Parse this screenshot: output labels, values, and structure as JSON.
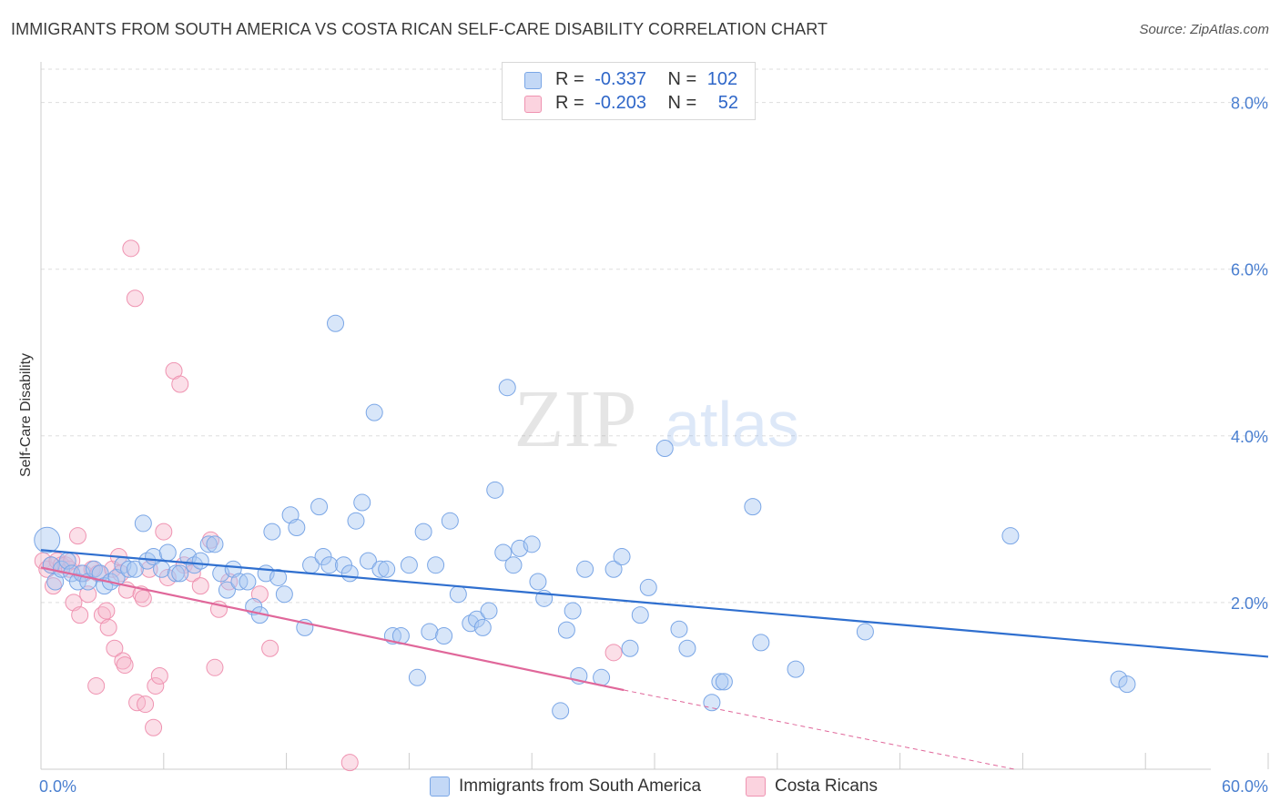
{
  "header": {
    "title": "IMMIGRANTS FROM SOUTH AMERICA VS COSTA RICAN SELF-CARE DISABILITY CORRELATION CHART",
    "source": "Source: ZipAtlas.com"
  },
  "watermark": {
    "zip": "ZIP",
    "atlas": "atlas"
  },
  "legend": {
    "rows": [
      {
        "r_label": "R =",
        "r_value": "-0.337",
        "n_label": "N =",
        "n_value": "102",
        "color": "#a9c7f2"
      },
      {
        "r_label": "R =",
        "r_value": "-0.203",
        "n_label": "N =",
        "n_value": "52",
        "color": "#f6b9cc"
      }
    ]
  },
  "colors": {
    "blue_fill": "#a9c7f2",
    "blue_stroke": "#7aa6e6",
    "blue_line": "#2f6fcf",
    "pink_fill": "#f6b9cc",
    "pink_stroke": "#ef93b1",
    "pink_line": "#e0679a",
    "tick_text": "#4a7fd0",
    "grid": "#dddddd"
  },
  "chart_data": {
    "type": "scatter",
    "title": "IMMIGRANTS FROM SOUTH AMERICA VS COSTA RICAN SELF-CARE DISABILITY CORRELATION CHART",
    "xlabel": "",
    "ylabel": "Self-Care Disability",
    "xlim": [
      0,
      60
    ],
    "ylim": [
      0,
      8.4
    ],
    "x_tick_labels": [
      "0.0%",
      "60.0%"
    ],
    "y_ticks": [
      2,
      4,
      6,
      8
    ],
    "y_tick_labels": [
      "2.0%",
      "4.0%",
      "6.0%",
      "8.0%"
    ],
    "grid": true,
    "series": [
      {
        "name": "Immigrants from South America",
        "r": -0.337,
        "n": 102,
        "trend": {
          "x0": 0,
          "y0": 2.63,
          "x1": 60,
          "y1": 1.35
        },
        "points": [
          [
            0.3,
            2.75
          ],
          [
            0.5,
            2.45
          ],
          [
            0.7,
            2.25
          ],
          [
            1.0,
            2.4
          ],
          [
            1.3,
            2.5
          ],
          [
            1.5,
            2.35
          ],
          [
            1.8,
            2.25
          ],
          [
            2.0,
            2.35
          ],
          [
            2.3,
            2.25
          ],
          [
            2.6,
            2.4
          ],
          [
            2.9,
            2.35
          ],
          [
            3.1,
            2.2
          ],
          [
            3.4,
            2.25
          ],
          [
            3.7,
            2.3
          ],
          [
            4.0,
            2.45
          ],
          [
            4.3,
            2.4
          ],
          [
            4.6,
            2.4
          ],
          [
            5.0,
            2.95
          ],
          [
            5.2,
            2.5
          ],
          [
            5.5,
            2.55
          ],
          [
            5.9,
            2.4
          ],
          [
            6.2,
            2.6
          ],
          [
            6.6,
            2.35
          ],
          [
            6.8,
            2.35
          ],
          [
            7.2,
            2.55
          ],
          [
            7.5,
            2.45
          ],
          [
            7.8,
            2.5
          ],
          [
            8.2,
            2.7
          ],
          [
            8.5,
            2.7
          ],
          [
            8.8,
            2.35
          ],
          [
            9.1,
            2.15
          ],
          [
            9.4,
            2.4
          ],
          [
            9.7,
            2.25
          ],
          [
            10.1,
            2.25
          ],
          [
            10.4,
            1.95
          ],
          [
            10.7,
            1.85
          ],
          [
            11.0,
            2.35
          ],
          [
            11.3,
            2.85
          ],
          [
            11.6,
            2.3
          ],
          [
            11.9,
            2.1
          ],
          [
            12.2,
            3.05
          ],
          [
            12.5,
            2.9
          ],
          [
            12.9,
            1.7
          ],
          [
            13.2,
            2.45
          ],
          [
            13.6,
            3.15
          ],
          [
            13.8,
            2.55
          ],
          [
            14.1,
            2.45
          ],
          [
            14.4,
            5.35
          ],
          [
            14.8,
            2.45
          ],
          [
            15.1,
            2.35
          ],
          [
            15.4,
            2.98
          ],
          [
            15.7,
            3.2
          ],
          [
            16.0,
            2.5
          ],
          [
            16.3,
            4.28
          ],
          [
            16.6,
            2.4
          ],
          [
            16.9,
            2.4
          ],
          [
            17.2,
            1.6
          ],
          [
            17.6,
            1.6
          ],
          [
            18.0,
            2.45
          ],
          [
            18.4,
            1.1
          ],
          [
            18.7,
            2.85
          ],
          [
            19.0,
            1.65
          ],
          [
            19.3,
            2.45
          ],
          [
            19.7,
            1.6
          ],
          [
            20.0,
            2.98
          ],
          [
            20.4,
            2.1
          ],
          [
            21.0,
            1.75
          ],
          [
            21.3,
            1.8
          ],
          [
            21.6,
            1.7
          ],
          [
            21.9,
            1.9
          ],
          [
            22.2,
            3.35
          ],
          [
            22.6,
            2.6
          ],
          [
            22.8,
            4.58
          ],
          [
            23.1,
            2.45
          ],
          [
            23.4,
            2.65
          ],
          [
            24.0,
            2.7
          ],
          [
            24.3,
            2.25
          ],
          [
            24.6,
            2.05
          ],
          [
            25.4,
            0.7
          ],
          [
            25.7,
            1.67
          ],
          [
            26.0,
            1.9
          ],
          [
            26.3,
            1.12
          ],
          [
            26.6,
            2.4
          ],
          [
            27.4,
            1.1
          ],
          [
            28.0,
            2.4
          ],
          [
            28.4,
            2.55
          ],
          [
            28.8,
            1.45
          ],
          [
            29.3,
            1.85
          ],
          [
            29.7,
            2.18
          ],
          [
            30.5,
            3.85
          ],
          [
            31.2,
            1.68
          ],
          [
            31.6,
            1.45
          ],
          [
            32.8,
            0.8
          ],
          [
            33.2,
            1.05
          ],
          [
            33.4,
            1.05
          ],
          [
            34.8,
            3.15
          ],
          [
            35.2,
            1.52
          ],
          [
            36.9,
            1.2
          ],
          [
            40.3,
            1.65
          ],
          [
            47.4,
            2.8
          ],
          [
            52.7,
            1.08
          ],
          [
            53.1,
            1.02
          ]
        ]
      },
      {
        "name": "Costa Ricans",
        "r": -0.203,
        "n": 52,
        "trend": {
          "x0": 0,
          "y0": 2.42,
          "x1": 28.5,
          "y1": 0.95,
          "dashed_to": {
            "x": 47.6,
            "y": 0.0
          }
        },
        "points": [
          [
            0.1,
            2.5
          ],
          [
            0.3,
            2.4
          ],
          [
            0.5,
            2.45
          ],
          [
            0.6,
            2.2
          ],
          [
            0.8,
            2.5
          ],
          [
            1.0,
            2.45
          ],
          [
            1.2,
            2.45
          ],
          [
            1.4,
            2.4
          ],
          [
            1.5,
            2.5
          ],
          [
            1.6,
            2.0
          ],
          [
            1.8,
            2.8
          ],
          [
            1.9,
            1.85
          ],
          [
            2.1,
            2.35
          ],
          [
            2.3,
            2.1
          ],
          [
            2.5,
            2.4
          ],
          [
            2.7,
            1.0
          ],
          [
            2.8,
            2.35
          ],
          [
            3.0,
            1.85
          ],
          [
            3.2,
            1.9
          ],
          [
            3.3,
            1.7
          ],
          [
            3.5,
            2.4
          ],
          [
            3.6,
            1.45
          ],
          [
            3.8,
            2.55
          ],
          [
            3.9,
            2.35
          ],
          [
            4.0,
            1.3
          ],
          [
            4.1,
            1.25
          ],
          [
            4.2,
            2.15
          ],
          [
            4.4,
            6.25
          ],
          [
            4.6,
            5.65
          ],
          [
            4.7,
            0.8
          ],
          [
            4.9,
            2.1
          ],
          [
            5.0,
            2.05
          ],
          [
            5.1,
            0.78
          ],
          [
            5.3,
            2.4
          ],
          [
            5.5,
            0.5
          ],
          [
            5.6,
            1.0
          ],
          [
            5.8,
            1.12
          ],
          [
            6.0,
            2.85
          ],
          [
            6.2,
            2.3
          ],
          [
            6.5,
            4.78
          ],
          [
            6.8,
            4.62
          ],
          [
            7.0,
            2.45
          ],
          [
            7.4,
            2.35
          ],
          [
            7.8,
            2.2
          ],
          [
            8.3,
            2.75
          ],
          [
            8.5,
            1.22
          ],
          [
            8.7,
            1.92
          ],
          [
            9.2,
            2.25
          ],
          [
            10.7,
            2.1
          ],
          [
            11.2,
            1.45
          ],
          [
            15.1,
            0.08
          ],
          [
            28.0,
            1.4
          ]
        ]
      }
    ]
  }
}
